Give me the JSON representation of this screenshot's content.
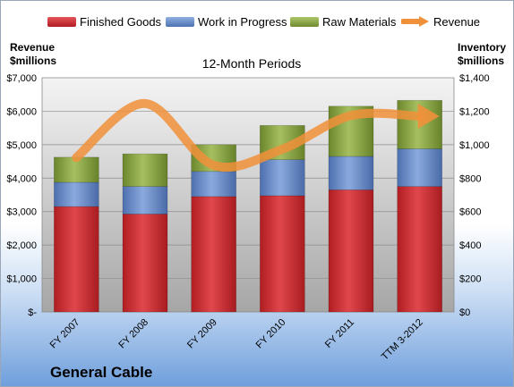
{
  "legend": {
    "items": [
      {
        "label": "Finished Goods",
        "color": "#c0262a"
      },
      {
        "label": "Work in Progress",
        "color": "#5b80bd"
      },
      {
        "label": "Raw Materials",
        "color": "#7e9a3a"
      },
      {
        "label": "Revenue",
        "color": "#f0903a"
      }
    ]
  },
  "left_axis_title": [
    "Revenue",
    "$millions"
  ],
  "right_axis_title": [
    "Inventory",
    "$millions"
  ],
  "subtitle": "12-Month Periods",
  "company": "General Cable",
  "chart_data": {
    "type": "bar",
    "stacked": true,
    "title": "12-Month Periods",
    "categories": [
      "FY 2007",
      "FY 2008",
      "FY 2009",
      "FY 2010",
      "FY 2011",
      "TTM 3-2012"
    ],
    "series": [
      {
        "name": "Finished Goods",
        "axis": "right",
        "color": "#c0262a",
        "values": [
          630,
          585,
          690,
          695,
          730,
          750
        ]
      },
      {
        "name": "Work in Progress",
        "axis": "right",
        "color": "#5b80bd",
        "values": [
          145,
          165,
          150,
          215,
          200,
          225
        ]
      },
      {
        "name": "Raw Materials",
        "axis": "right",
        "color": "#7e9a3a",
        "values": [
          150,
          195,
          160,
          205,
          300,
          290
        ]
      },
      {
        "name": "Revenue",
        "axis": "left",
        "type": "line",
        "color": "#f0903a",
        "values": [
          4615,
          6230,
          4385,
          4865,
          5870,
          5850
        ]
      }
    ],
    "left_axis": {
      "label": "Revenue $millions",
      "ylim": [
        0,
        7000
      ],
      "ticks": [
        "$-",
        "$1,000",
        "$2,000",
        "$3,000",
        "$4,000",
        "$5,000",
        "$6,000",
        "$7,000"
      ]
    },
    "right_axis": {
      "label": "Inventory $millions",
      "ylim": [
        0,
        1400
      ],
      "ticks": [
        "$0",
        "$200",
        "$400",
        "$600",
        "$800",
        "$1,000",
        "$1,200",
        "$1,400"
      ]
    },
    "grid": true,
    "legend_position": "top"
  }
}
